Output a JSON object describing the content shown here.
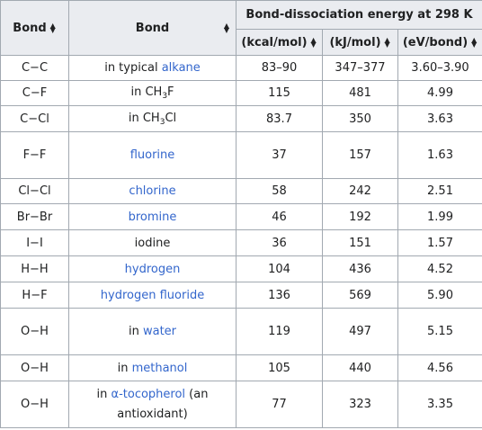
{
  "header": {
    "bond_symbol": "Bond",
    "bond_description": "Bond",
    "energy_group": "Bond-dissociation energy at 298 K",
    "units": [
      "(kcal/mol)",
      "(kJ/mol)",
      "(eV/bond)"
    ],
    "sort_icon": "sort-arrows-icon"
  },
  "rows": [
    {
      "bond": "C−C",
      "pre": "in typical ",
      "link": "alkane",
      "post": "",
      "kcal": "83–90",
      "kj": "347–377",
      "ev": "3.60–3.90"
    },
    {
      "bond": "C−F",
      "pre": "in CH",
      "sub": "3",
      "post2": "F",
      "kcal": "115",
      "kj": "481",
      "ev": "4.99"
    },
    {
      "bond": "C−Cl",
      "pre": "in CH",
      "sub": "3",
      "post2": "Cl",
      "kcal": "83.7",
      "kj": "350",
      "ev": "3.63"
    },
    {
      "bond": "F−F",
      "link": "fluorine",
      "kcal": "37",
      "kj": "157",
      "ev": "1.63"
    },
    {
      "bond": "Cl−Cl",
      "link": "chlorine",
      "kcal": "58",
      "kj": "242",
      "ev": "2.51"
    },
    {
      "bond": "Br−Br",
      "link": "bromine",
      "kcal": "46",
      "kj": "192",
      "ev": "1.99"
    },
    {
      "bond": "I−I",
      "text": "iodine",
      "kcal": "36",
      "kj": "151",
      "ev": "1.57"
    },
    {
      "bond": "H−H",
      "link": "hydrogen",
      "kcal": "104",
      "kj": "436",
      "ev": "4.52"
    },
    {
      "bond": "H−F",
      "link": "hydrogen fluoride",
      "kcal": "136",
      "kj": "569",
      "ev": "5.90"
    },
    {
      "bond": "O−H",
      "pre": "in ",
      "link": "water",
      "kcal": "119",
      "kj": "497",
      "ev": "5.15"
    },
    {
      "bond": "O−H",
      "pre": "in ",
      "link": "methanol",
      "kcal": "105",
      "kj": "440",
      "ev": "4.56"
    },
    {
      "bond": "O−H",
      "pre": "in ",
      "link": "α-tocopherol",
      "post": " (an antioxidant)",
      "kcal": "77",
      "kj": "323",
      "ev": "3.35"
    }
  ]
}
